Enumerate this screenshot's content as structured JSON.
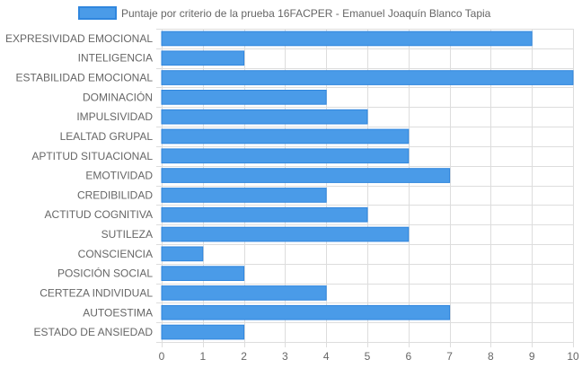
{
  "chart_data": {
    "type": "bar",
    "orientation": "horizontal",
    "legend": {
      "position": "top",
      "label": "Puntaje por criterio de la prueba 16FACPER - Emanuel Joaquín Blanco Tapia"
    },
    "series": [
      {
        "name": "Puntaje por criterio de la prueba 16FACPER - Emanuel Joaquín Blanco Tapia",
        "values": [
          9,
          2,
          10,
          4,
          5,
          6,
          6,
          7,
          4,
          5,
          6,
          1,
          2,
          4,
          7,
          2
        ]
      }
    ],
    "categories": [
      "EXPRESIVIDAD EMOCIONAL",
      "INTELIGENCIA",
      "ESTABILIDAD EMOCIONAL",
      "DOMINACIÓN",
      "IMPULSIVIDAD",
      "LEALTAD GRUPAL",
      "APTITUD SITUACIONAL",
      "EMOTIVIDAD",
      "CREDIBILIDAD",
      "ACTITUD COGNITIVA",
      "SUTILEZA",
      "CONSCIENCIA",
      "POSICIÓN SOCIAL",
      "CERTEZA INDIVIDUAL",
      "AUTOESTIMA",
      "ESTADO DE ANSIEDAD"
    ],
    "xlim": [
      0,
      10
    ],
    "x_ticks": [
      "0",
      "1",
      "2",
      "3",
      "4",
      "5",
      "6",
      "7",
      "8",
      "9",
      "10"
    ],
    "grid": true,
    "colors": {
      "bar_fill": "#4a9be8",
      "bar_border": "#2f86de",
      "grid": "#dddddd",
      "text": "#666666"
    }
  }
}
